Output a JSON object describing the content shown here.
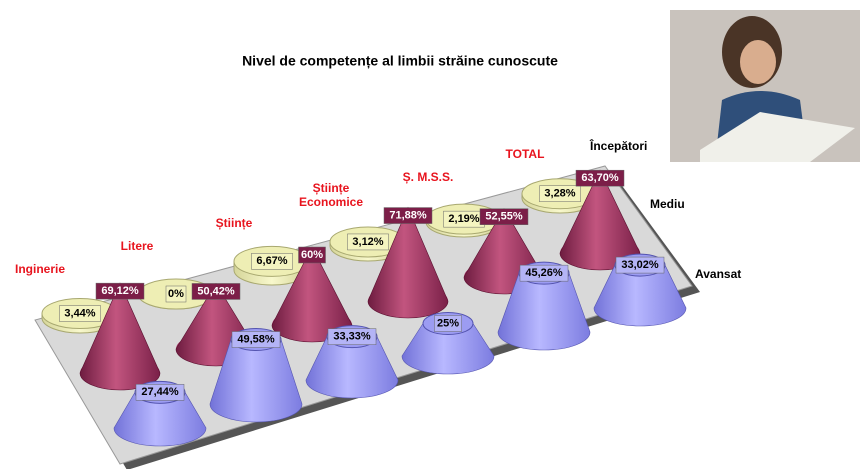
{
  "chart_data": {
    "type": "cone3d",
    "subtitle": "Nivel de competențe al limbii străine cunoscute",
    "categories": [
      "Inginerie",
      "Litere",
      "Științe",
      "Științe Economice",
      "Ș. M.S.S.",
      "TOTAL"
    ],
    "series": [
      {
        "name": "Începători",
        "shape": "cylinder",
        "color": "#eeeeb4",
        "values": [
          3.44,
          0,
          6.67,
          3.12,
          2.19,
          3.28
        ],
        "value_labels": [
          "3,44%",
          "0%",
          "6,67%",
          "3,12%",
          "2,19%",
          "3,28%"
        ]
      },
      {
        "name": "Mediu",
        "shape": "cone",
        "color": "#9c2c5c",
        "values": [
          69.12,
          50.42,
          60,
          71.88,
          52.55,
          63.7
        ],
        "value_labels": [
          "69,12%",
          "50,42%",
          "60%",
          "71,88%",
          "52,55%",
          "63,70%"
        ]
      },
      {
        "name": "Avansat",
        "shape": "frustum",
        "color": "#9c9cf2",
        "values": [
          27.44,
          49.58,
          33.33,
          25,
          45.26,
          33.02
        ],
        "value_labels": [
          "27,44%",
          "49,58%",
          "33,33%",
          "25%",
          "45,26%",
          "33,02%"
        ]
      }
    ]
  }
}
